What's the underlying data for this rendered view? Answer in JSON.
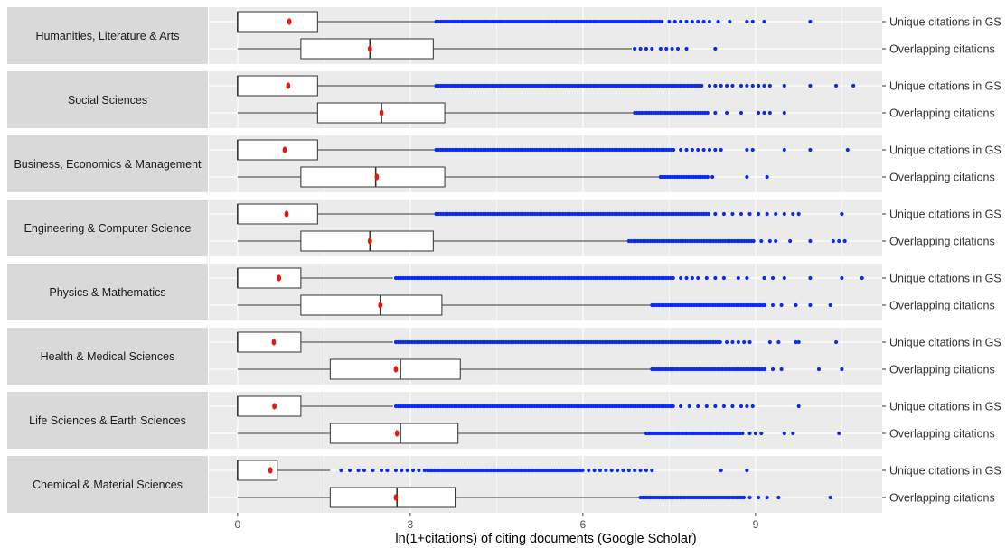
{
  "chart_data": {
    "type": "boxplot",
    "xlabel": "ln(1+citations) of citing documents (Google Scholar)",
    "xlim": [
      -0.5,
      11.2
    ],
    "xticks": [
      0,
      3,
      6,
      9
    ],
    "grid": true,
    "row_labels": [
      "Unique citations in GS",
      "Overlapping citations"
    ],
    "colors": {
      "outlier": "#0a2cf0",
      "mean": "#e8170e",
      "panel": "#ebebeb",
      "strip": "#d9d9d9",
      "box_line": "#333333",
      "grid": "#ffffff"
    },
    "facets": [
      {
        "name": "Humanities, Literature & Arts",
        "rows": [
          {
            "label": "Unique citations in GS",
            "whisker_low": 0,
            "q1": 0,
            "median": 0,
            "q3": 1.39,
            "whisker_high": 3.45,
            "mean": 0.9,
            "outlier_dense": [
              3.45,
              7.4
            ],
            "outliers": [
              7.5,
              7.6,
              7.7,
              7.8,
              7.9,
              8.0,
              8.1,
              8.2,
              8.35,
              8.55,
              8.85,
              8.95,
              9.15,
              9.95
            ]
          },
          {
            "label": "Overlapping citations",
            "whisker_low": 0,
            "q1": 1.1,
            "median": 2.3,
            "q3": 3.4,
            "whisker_high": 6.85,
            "mean": 2.3,
            "outlier_dense": null,
            "outliers": [
              6.9,
              7.0,
              7.1,
              7.2,
              7.35,
              7.45,
              7.55,
              7.65,
              7.8,
              8.3
            ]
          }
        ]
      },
      {
        "name": "Social Sciences",
        "rows": [
          {
            "label": "Unique citations in GS",
            "whisker_low": 0,
            "q1": 0,
            "median": 0,
            "q3": 1.39,
            "whisker_high": 3.45,
            "mean": 0.88,
            "outlier_dense": [
              3.45,
              8.1
            ],
            "outliers": [
              8.2,
              8.3,
              8.4,
              8.5,
              8.6,
              8.75,
              8.85,
              8.95,
              9.05,
              9.15,
              9.25,
              9.5,
              9.95,
              10.4,
              10.7
            ]
          },
          {
            "label": "Overlapping citations",
            "whisker_low": 0,
            "q1": 1.39,
            "median": 2.5,
            "q3": 3.6,
            "whisker_high": 6.9,
            "mean": 2.5,
            "outlier_dense": [
              6.9,
              8.2
            ],
            "outliers": [
              8.3,
              8.5,
              8.75,
              9.05,
              9.15,
              9.25,
              9.5
            ]
          }
        ]
      },
      {
        "name": "Business, Economics & Management",
        "rows": [
          {
            "label": "Unique citations in GS",
            "whisker_low": 0,
            "q1": 0,
            "median": 0,
            "q3": 1.39,
            "whisker_high": 3.45,
            "mean": 0.82,
            "outlier_dense": [
              3.45,
              7.6
            ],
            "outliers": [
              7.7,
              7.8,
              7.9,
              8.0,
              8.1,
              8.2,
              8.3,
              8.4,
              8.85,
              8.95,
              9.5,
              9.95,
              10.6
            ]
          },
          {
            "label": "Overlapping citations",
            "whisker_low": 0,
            "q1": 1.1,
            "median": 2.4,
            "q3": 3.6,
            "whisker_high": 7.35,
            "mean": 2.42,
            "outlier_dense": [
              7.35,
              8.2
            ],
            "outliers": [
              8.25,
              8.85,
              9.2
            ]
          }
        ]
      },
      {
        "name": "Engineering & Computer Science",
        "rows": [
          {
            "label": "Unique citations in GS",
            "whisker_low": 0,
            "q1": 0,
            "median": 0,
            "q3": 1.39,
            "whisker_high": 3.45,
            "mean": 0.85,
            "outlier_dense": [
              3.45,
              8.2
            ],
            "outliers": [
              8.3,
              8.45,
              8.6,
              8.75,
              8.9,
              9.05,
              9.2,
              9.35,
              9.5,
              9.65,
              9.75,
              10.5
            ]
          },
          {
            "label": "Overlapping citations",
            "whisker_low": 0,
            "q1": 1.1,
            "median": 2.3,
            "q3": 3.4,
            "whisker_high": 6.8,
            "mean": 2.3,
            "outlier_dense": [
              6.8,
              9.0
            ],
            "outliers": [
              9.1,
              9.25,
              9.35,
              9.6,
              9.95,
              10.35,
              10.45,
              10.55
            ]
          }
        ]
      },
      {
        "name": "Physics & Mathematics",
        "rows": [
          {
            "label": "Unique citations in GS",
            "whisker_low": 0,
            "q1": 0,
            "median": 0,
            "q3": 1.1,
            "whisker_high": 2.7,
            "mean": 0.72,
            "outlier_dense": [
              2.75,
              7.6
            ],
            "outliers": [
              7.7,
              7.8,
              7.9,
              8.0,
              8.15,
              8.3,
              8.45,
              8.7,
              8.85,
              9.15,
              9.3,
              9.5,
              9.95,
              10.5,
              10.85
            ]
          },
          {
            "label": "Overlapping citations",
            "whisker_low": 0,
            "q1": 1.1,
            "median": 2.48,
            "q3": 3.55,
            "whisker_high": 7.2,
            "mean": 2.48,
            "outlier_dense": [
              7.2,
              9.2
            ],
            "outliers": [
              9.3,
              9.45,
              9.7,
              9.95,
              10.3
            ]
          }
        ]
      },
      {
        "name": "Health & Medical Sciences",
        "rows": [
          {
            "label": "Unique citations in GS",
            "whisker_low": 0,
            "q1": 0,
            "median": 0,
            "q3": 1.1,
            "whisker_high": 2.7,
            "mean": 0.63,
            "outlier_dense": [
              2.75,
              8.4
            ],
            "outliers": [
              8.5,
              8.6,
              8.7,
              8.8,
              8.9,
              9.25,
              9.4,
              9.7,
              9.75,
              10.4
            ]
          },
          {
            "label": "Overlapping citations",
            "whisker_low": 0,
            "q1": 1.61,
            "median": 2.83,
            "q3": 3.87,
            "whisker_high": 7.2,
            "mean": 2.75,
            "outlier_dense": [
              7.2,
              9.2
            ],
            "outliers": [
              9.3,
              9.45,
              10.1,
              10.5
            ]
          }
        ]
      },
      {
        "name": "Life Sciences & Earth Sciences",
        "rows": [
          {
            "label": "Unique citations in GS",
            "whisker_low": 0,
            "q1": 0,
            "median": 0,
            "q3": 1.1,
            "whisker_high": 2.7,
            "mean": 0.64,
            "outlier_dense": [
              2.75,
              7.6
            ],
            "outliers": [
              7.7,
              7.85,
              8.0,
              8.15,
              8.3,
              8.45,
              8.6,
              8.75,
              8.85,
              8.95,
              9.75
            ]
          },
          {
            "label": "Overlapping citations",
            "whisker_low": 0,
            "q1": 1.61,
            "median": 2.83,
            "q3": 3.83,
            "whisker_high": 7.1,
            "mean": 2.77,
            "outlier_dense": [
              7.1,
              8.8
            ],
            "outliers": [
              8.9,
              9.0,
              9.1,
              9.5,
              9.65,
              10.45
            ]
          }
        ]
      },
      {
        "name": "Chemical & Material Sciences",
        "rows": [
          {
            "label": "Unique citations in GS",
            "whisker_low": 0,
            "q1": 0,
            "median": 0,
            "q3": 0.69,
            "whisker_high": 1.61,
            "mean": 0.57,
            "outlier_dense": [
              3.3,
              6.0
            ],
            "outliers": [
              1.8,
              1.95,
              2.1,
              2.2,
              2.35,
              2.5,
              2.6,
              2.75,
              2.85,
              2.95,
              3.05,
              3.15,
              3.25,
              6.1,
              6.2,
              6.3,
              6.4,
              6.5,
              6.6,
              6.7,
              6.8,
              6.9,
              7.0,
              7.1,
              7.2,
              8.4,
              8.85
            ]
          },
          {
            "label": "Overlapping citations",
            "whisker_low": 0,
            "q1": 1.61,
            "median": 2.77,
            "q3": 3.78,
            "whisker_high": 7.0,
            "mean": 2.75,
            "outlier_dense": [
              7.0,
              8.8
            ],
            "outliers": [
              8.9,
              9.05,
              9.2,
              9.4,
              10.3
            ]
          }
        ]
      }
    ]
  }
}
